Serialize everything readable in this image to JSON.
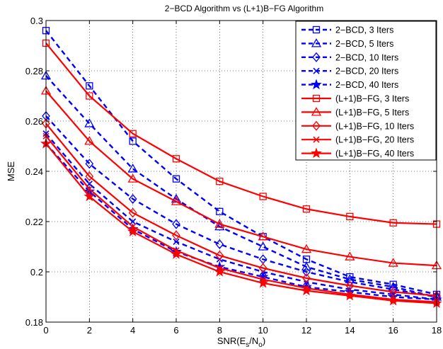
{
  "chart_data": {
    "type": "line",
    "title": "2−BCD Algorithm vs (L+1)B−FG Algorithm",
    "xlabel": "SNR(E_s/N_o)",
    "xlabel_parts": {
      "main": "SNR(E",
      "sub1": "s",
      "mid": "/N",
      "sub2": "o",
      "end": ")"
    },
    "ylabel": "MSE",
    "xlim": [
      0,
      18
    ],
    "ylim": [
      0.18,
      0.3
    ],
    "xticks": [
      0,
      2,
      4,
      6,
      8,
      10,
      12,
      14,
      16,
      18
    ],
    "yticks": [
      0.18,
      0.2,
      0.22,
      0.24,
      0.26,
      0.28,
      0.3
    ],
    "ytick_labels": [
      "0.18",
      "0.2",
      "0.22",
      "0.24",
      "0.26",
      "0.28",
      "0.3"
    ],
    "grid": true,
    "legend_position": "top-right",
    "x": [
      0,
      2,
      4,
      6,
      8,
      10,
      12,
      14,
      16,
      18
    ],
    "series": [
      {
        "name": "2−BCD, 3 Iters",
        "color": "#0000ff",
        "style": "dashed",
        "marker": "square",
        "values": [
          0.296,
          0.274,
          0.252,
          0.237,
          0.224,
          0.214,
          0.205,
          0.198,
          0.195,
          0.191
        ]
      },
      {
        "name": "2−BCD, 5 Iters",
        "color": "#0000ff",
        "style": "dashed",
        "marker": "triangle",
        "values": [
          0.278,
          0.259,
          0.241,
          0.229,
          0.218,
          0.21,
          0.202,
          0.197,
          0.194,
          0.19
        ]
      },
      {
        "name": "2−BCD, 10 Iters",
        "color": "#0000ff",
        "style": "dashed",
        "marker": "diamond",
        "values": [
          0.262,
          0.243,
          0.229,
          0.219,
          0.211,
          0.205,
          0.2,
          0.196,
          0.193,
          0.19
        ]
      },
      {
        "name": "2−BCD, 20 Iters",
        "color": "#0000ff",
        "style": "dashed",
        "marker": "x",
        "values": [
          0.255,
          0.235,
          0.22,
          0.212,
          0.205,
          0.2,
          0.196,
          0.193,
          0.191,
          0.189
        ]
      },
      {
        "name": "2−BCD, 40 Iters",
        "color": "#0000ff",
        "style": "dashed",
        "marker": "star",
        "values": [
          0.251,
          0.232,
          0.217,
          0.208,
          0.202,
          0.198,
          0.194,
          0.192,
          0.19,
          0.189
        ]
      },
      {
        "name": "(L+1)B−FG, 3 Iters",
        "color": "#ff0000",
        "style": "solid",
        "marker": "square",
        "values": [
          0.291,
          0.27,
          0.255,
          0.245,
          0.236,
          0.23,
          0.225,
          0.222,
          0.2195,
          0.219
        ]
      },
      {
        "name": "(L+1)B−FG, 5 Iters",
        "color": "#ff0000",
        "style": "solid",
        "marker": "triangle",
        "values": [
          0.272,
          0.252,
          0.237,
          0.228,
          0.219,
          0.214,
          0.209,
          0.206,
          0.2035,
          0.2025
        ]
      },
      {
        "name": "(L+1)B−FG, 10 Iters",
        "color": "#ff0000",
        "style": "solid",
        "marker": "diamond",
        "values": [
          0.259,
          0.238,
          0.2235,
          0.2145,
          0.2065,
          0.2015,
          0.1975,
          0.1945,
          0.192,
          0.1905
        ]
      },
      {
        "name": "(L+1)B−FG, 20 Iters",
        "color": "#ff0000",
        "style": "solid",
        "marker": "x",
        "values": [
          0.254,
          0.233,
          0.218,
          0.2085,
          0.2015,
          0.197,
          0.1935,
          0.191,
          0.189,
          0.188
        ]
      },
      {
        "name": "(L+1)B−FG, 40 Iters",
        "color": "#ff0000",
        "style": "solid",
        "marker": "star",
        "values": [
          0.251,
          0.23,
          0.216,
          0.207,
          0.2,
          0.1955,
          0.1925,
          0.1905,
          0.1885,
          0.1875
        ]
      }
    ]
  }
}
